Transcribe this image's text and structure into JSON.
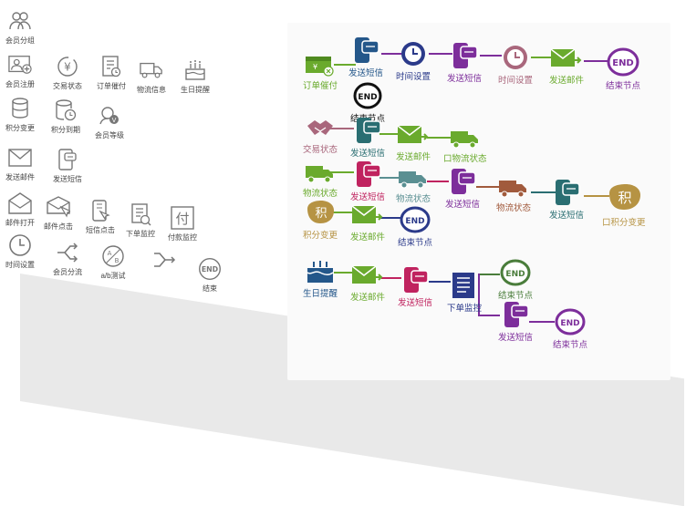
{
  "palette": [
    {
      "label": "会员分组",
      "icon": "users-group-icon"
    },
    {
      "label": "会员注册",
      "icon": "user-register-icon"
    },
    {
      "label": "交易状态",
      "icon": "yuan-transaction-icon"
    },
    {
      "label": "订单催付",
      "icon": "order-remind-icon"
    },
    {
      "label": "物流信息",
      "icon": "truck-icon"
    },
    {
      "label": "生日提醒",
      "icon": "birthday-cake-icon"
    },
    {
      "label": "积分变更",
      "icon": "points-db-icon"
    },
    {
      "label": "积分到期",
      "icon": "points-expire-icon"
    },
    {
      "label": "会员等级",
      "icon": "member-level-icon"
    },
    {
      "label": "发送邮件",
      "icon": "mail-icon"
    },
    {
      "label": "发送短信",
      "icon": "sms-icon"
    },
    {
      "label": "邮件打开",
      "icon": "mail-open-icon"
    },
    {
      "label": "邮件点击",
      "icon": "mail-click-icon"
    },
    {
      "label": "短信点击",
      "icon": "sms-click-icon"
    },
    {
      "label": "下单监控",
      "icon": "order-monitor-icon"
    },
    {
      "label": "付款监控",
      "icon": "payment-monitor-icon"
    },
    {
      "label": "时间设置",
      "icon": "clock-icon"
    },
    {
      "label": "会员分流",
      "icon": "split-icon"
    },
    {
      "label": "a/b测试",
      "icon": "ab-test-icon"
    },
    {
      "label": "",
      "icon": "merge-icon"
    },
    {
      "label": "结束",
      "icon": "end-icon"
    }
  ],
  "icon_glyphs": {
    "pay_char": "付",
    "points_char": "积",
    "end_text": "END",
    "ab_a": "A",
    "ab_b": "B"
  },
  "flows": {
    "row1": [
      "订单催付",
      "发送短信",
      "时间设置",
      "发送短信",
      "时间设置",
      "发送邮件",
      "结束节点"
    ],
    "row1b": [
      "结束节点"
    ],
    "row2": [
      "交易状态",
      "发送短信",
      "发送邮件",
      "口物流状态"
    ],
    "row3": [
      "物流状态",
      "发送短信",
      "物流状态",
      "发送短信",
      "物流状态",
      "发送短信",
      "口积分变更"
    ],
    "row4": [
      "积分变更",
      "发送邮件",
      "结束节点"
    ],
    "row5": [
      "生日提醒",
      "发送邮件",
      "发送短信",
      "下单监控",
      "结束节点"
    ],
    "row5b": [
      "发送短信",
      "结束节点"
    ]
  },
  "colors": {
    "green": "#6aaa2d",
    "purple": "#7d2e9b",
    "navy": "#2b3a8a",
    "teal": "#2a6e72",
    "magenta": "#c0235f",
    "mauve": "#a9677c",
    "grey_teal": "#5a8f92",
    "brown": "#a15a3c",
    "gold": "#b69343",
    "blue": "#24578a",
    "dark_green": "#4a7d3b"
  }
}
